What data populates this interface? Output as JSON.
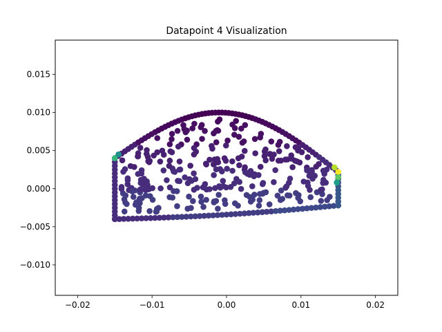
{
  "chart_data": {
    "type": "scatter",
    "title": "Datapoint 4 Visualization",
    "xlabel": "",
    "ylabel": "",
    "xlim": [
      -0.023,
      0.023
    ],
    "ylim": [
      -0.014,
      0.0195
    ],
    "xticks": [
      -0.02,
      -0.01,
      0.0,
      0.01,
      0.02
    ],
    "xtick_labels": [
      "−0.02",
      "−0.01",
      "0.00",
      "0.01",
      "0.02"
    ],
    "yticks": [
      -0.01,
      -0.005,
      0.0,
      0.005,
      0.01,
      0.015
    ],
    "ytick_labels": [
      "−0.010",
      "−0.005",
      "0.000",
      "0.005",
      "0.010",
      "0.015"
    ],
    "grid": false,
    "colormap": "viridis",
    "shape": {
      "description_free": true,
      "x_range": [
        -0.015,
        0.015
      ],
      "top_arc_peak": [
        -0.001,
        0.01
      ],
      "left_top_y": 0.004,
      "right_top_y": 0.0022,
      "bottom_left_y": -0.004,
      "bottom_right_y": -0.0022
    },
    "highlight_points": [
      {
        "x": 0.015,
        "y": 0.0022,
        "color": "#fde725"
      },
      {
        "x": 0.0145,
        "y": 0.0028,
        "color": "#b5de2b"
      },
      {
        "x": 0.015,
        "y": 0.0015,
        "color": "#5ec962"
      },
      {
        "x": -0.015,
        "y": 0.004,
        "color": "#35b779"
      },
      {
        "x": -0.0145,
        "y": 0.0045,
        "color": "#21918c"
      },
      {
        "x": 0.0148,
        "y": 0.0008,
        "color": "#1f9e89"
      }
    ]
  }
}
